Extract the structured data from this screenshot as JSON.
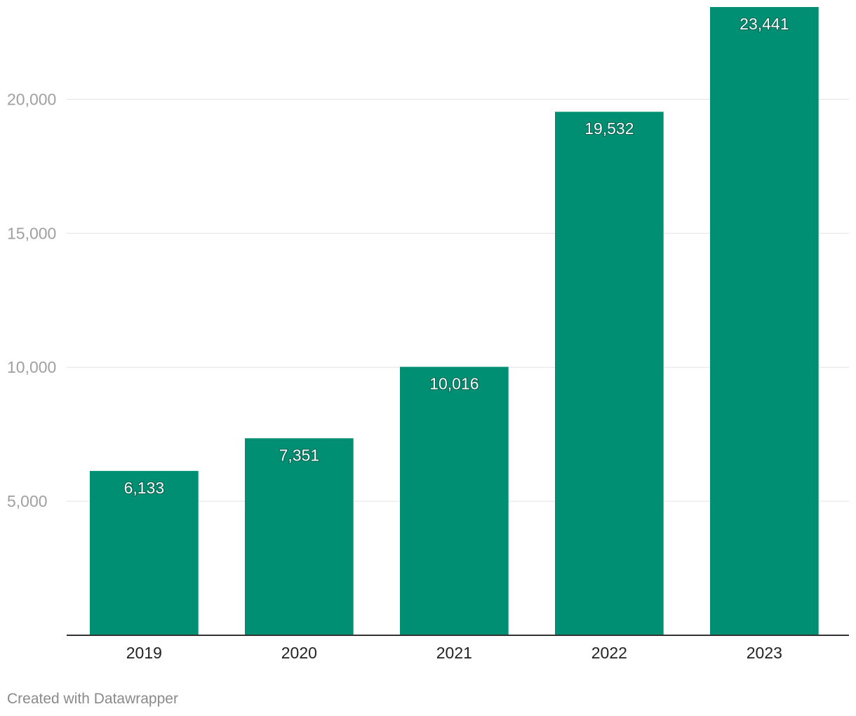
{
  "chart_data": {
    "type": "bar",
    "title": "",
    "xlabel": "",
    "ylabel": "",
    "categories": [
      "2019",
      "2020",
      "2021",
      "2022",
      "2023"
    ],
    "values": [
      6133,
      7351,
      10016,
      19532,
      23441
    ],
    "value_labels": [
      "6,133",
      "7,351",
      "10,016",
      "19,532",
      "23,441"
    ],
    "ylim": [
      0,
      23441
    ],
    "yticks": [
      5000,
      10000,
      15000,
      20000
    ],
    "ytick_labels": [
      "5,000",
      "10,000",
      "15,000",
      "20,000"
    ],
    "grid": true,
    "bar_color": "#008f72"
  },
  "footer": {
    "credit": "Created with Datawrapper"
  }
}
